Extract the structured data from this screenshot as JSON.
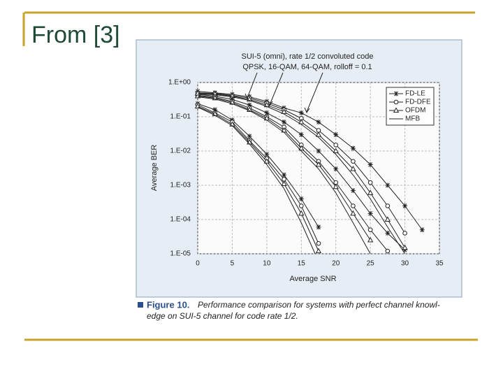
{
  "slide_title": "From [3]",
  "figure_caption": {
    "label": "Figure 10.",
    "lines": [
      "Performance comparison for systems with perfect channel knowl-",
      "edge on SUI-5 channel for code rate 1/2."
    ]
  },
  "chart_data": {
    "type": "line",
    "annotation": [
      "SUI-5 (omni), rate 1/2 convoluted code",
      "QPSK, 16-QAM, 64-QAM, rolloff = 0.1"
    ],
    "xlabel": "Average SNR",
    "ylabel": "Average BER",
    "xlim": [
      0,
      35
    ],
    "xticks": [
      0,
      5,
      10,
      15,
      20,
      25,
      30,
      35
    ],
    "ylim": [
      1e-05,
      1
    ],
    "log_y": true,
    "yticks": [
      {
        "value": 1,
        "label": "1.E+00"
      },
      {
        "value": 0.1,
        "label": "1.E-01"
      },
      {
        "value": 0.01,
        "label": "1.E-02"
      },
      {
        "value": 0.001,
        "label": "1.E-03"
      },
      {
        "value": 0.0001,
        "label": "1.E-04"
      },
      {
        "value": 1e-05,
        "label": "1.E-05"
      }
    ],
    "grid": true,
    "legend": "upper right",
    "series": [
      {
        "name": "FD-LE",
        "marker": "asterisk",
        "color": "#222222",
        "x": [
          0,
          2.5,
          5,
          7.5,
          10,
          12.5,
          15,
          17.5
        ],
        "values": [
          0.24,
          0.16,
          0.08,
          0.027,
          0.008,
          0.002,
          0.0004,
          6e-05
        ]
      },
      {
        "name": "FD-DFE",
        "marker": "circle",
        "color": "#222222",
        "x": [
          0,
          2.5,
          5,
          7.5,
          10,
          12.5,
          15,
          17.5
        ],
        "values": [
          0.22,
          0.13,
          0.07,
          0.02,
          0.006,
          0.0015,
          0.00025,
          2e-05
        ]
      },
      {
        "name": "OFDM",
        "marker": "triangle",
        "color": "#222222",
        "x": [
          0,
          2.5,
          5,
          7.5,
          10,
          12.5,
          15,
          17.5
        ],
        "values": [
          0.2,
          0.12,
          0.06,
          0.018,
          0.005,
          0.0011,
          0.00015,
          1.2e-05
        ]
      },
      {
        "name": "MFB",
        "marker": "none",
        "color": "#222222",
        "x": [
          0,
          2.5,
          5,
          7.5,
          10,
          12.5,
          15,
          17
        ],
        "values": [
          0.19,
          0.11,
          0.055,
          0.016,
          0.004,
          0.0008,
          8e-05,
          1e-05
        ]
      },
      {
        "name": "FD-LE",
        "marker": "asterisk",
        "color": "#222222",
        "x": [
          0,
          2.5,
          5,
          7.5,
          10,
          12.5,
          15,
          17.5,
          20,
          22.5,
          25,
          27.5,
          30
        ],
        "values": [
          0.45,
          0.4,
          0.32,
          0.22,
          0.13,
          0.07,
          0.03,
          0.01,
          0.003,
          0.0007,
          0.00015,
          4e-05,
          1.3e-05
        ]
      },
      {
        "name": "FD-DFE",
        "marker": "circle",
        "color": "#222222",
        "x": [
          0,
          2.5,
          5,
          7.5,
          10,
          12.5,
          15,
          17.5,
          20,
          22.5,
          25,
          27.5
        ],
        "values": [
          0.42,
          0.37,
          0.28,
          0.18,
          0.1,
          0.05,
          0.015,
          0.005,
          0.0012,
          0.00025,
          5e-05,
          1.2e-05
        ]
      },
      {
        "name": "OFDM",
        "marker": "triangle",
        "color": "#222222",
        "x": [
          0,
          2.5,
          5,
          7.5,
          10,
          12.5,
          15,
          17.5,
          20,
          22.5,
          25
        ],
        "values": [
          0.4,
          0.35,
          0.26,
          0.16,
          0.09,
          0.04,
          0.012,
          0.004,
          0.0009,
          0.00015,
          2.5e-05
        ]
      },
      {
        "name": "MFB",
        "marker": "none",
        "color": "#222222",
        "x": [
          0,
          2.5,
          5,
          7.5,
          10,
          12.5,
          15,
          17.5,
          20,
          22.5,
          25
        ],
        "values": [
          0.38,
          0.33,
          0.24,
          0.15,
          0.08,
          0.035,
          0.01,
          0.003,
          0.0006,
          8e-05,
          1e-05
        ]
      },
      {
        "name": "FD-LE",
        "marker": "asterisk",
        "color": "#222222",
        "x": [
          0,
          2.5,
          5,
          7.5,
          10,
          12.5,
          15,
          17.5,
          20,
          22.5,
          25,
          27.5,
          30,
          32.5
        ],
        "values": [
          0.55,
          0.5,
          0.45,
          0.38,
          0.28,
          0.18,
          0.13,
          0.07,
          0.03,
          0.012,
          0.004,
          0.001,
          0.00025,
          5e-05
        ]
      },
      {
        "name": "FD-DFE",
        "marker": "circle",
        "color": "#222222",
        "x": [
          0,
          2.5,
          5,
          7.5,
          10,
          12.5,
          15,
          17.5,
          20,
          22.5,
          25,
          27.5,
          30
        ],
        "values": [
          0.5,
          0.48,
          0.42,
          0.35,
          0.25,
          0.16,
          0.09,
          0.04,
          0.015,
          0.005,
          0.0012,
          0.00025,
          4e-05
        ]
      },
      {
        "name": "OFDM",
        "marker": "triangle",
        "color": "#222222",
        "x": [
          0,
          2.5,
          5,
          7.5,
          10,
          12.5,
          15,
          17.5,
          20,
          22.5,
          25,
          27.5,
          30
        ],
        "values": [
          0.48,
          0.46,
          0.4,
          0.32,
          0.22,
          0.14,
          0.07,
          0.03,
          0.01,
          0.003,
          0.0006,
          0.0001,
          1.5e-05
        ]
      },
      {
        "name": "MFB",
        "marker": "none",
        "color": "#222222",
        "x": [
          0,
          2.5,
          5,
          7.5,
          10,
          12.5,
          15,
          17.5,
          20,
          22.5,
          25,
          27.5,
          30
        ],
        "values": [
          0.46,
          0.44,
          0.38,
          0.3,
          0.2,
          0.12,
          0.06,
          0.025,
          0.008,
          0.002,
          0.0004,
          6e-05,
          1e-05
        ]
      }
    ]
  }
}
